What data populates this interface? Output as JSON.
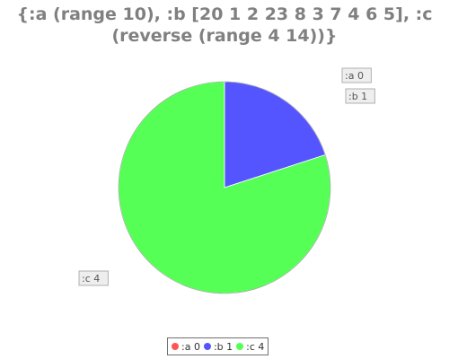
{
  "chart_data": {
    "type": "pie",
    "title_lines": [
      "{:a (range 10), :b [20 1 2 23 8 3 7 4 6 5], :c",
      "(reverse (range 4 14))}"
    ],
    "categories": [
      ":a",
      ":b",
      ":c"
    ],
    "values": [
      0,
      1,
      4
    ],
    "labels": [
      ":a 0",
      ":b 1",
      ":c 4"
    ],
    "colors": [
      "#ff5555",
      "#5555ff",
      "#55ff55"
    ],
    "legend_position": "bottom"
  }
}
